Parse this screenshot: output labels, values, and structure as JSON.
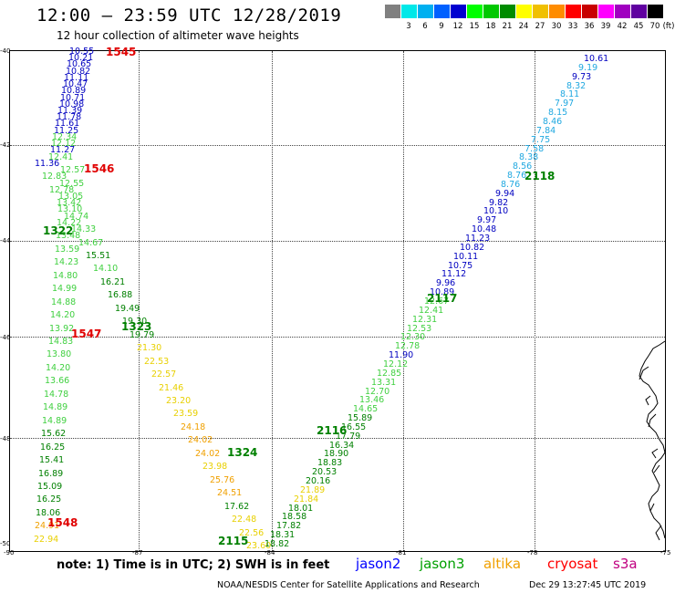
{
  "header": {
    "title": "12:00 – 23:59 UTC 12/28/2019",
    "subtitle": "12 hour collection of altimeter wave heights"
  },
  "legend": {
    "unit": "(ft)",
    "items": [
      {
        "label": "",
        "color": "#808080"
      },
      {
        "label": "3",
        "color": "#00e8e8"
      },
      {
        "label": "6",
        "color": "#00b0f0"
      },
      {
        "label": "9",
        "color": "#0060ff"
      },
      {
        "label": "12",
        "color": "#0000d0"
      },
      {
        "label": "15",
        "color": "#00ff00"
      },
      {
        "label": "18",
        "color": "#00c800"
      },
      {
        "label": "21",
        "color": "#008c00"
      },
      {
        "label": "24",
        "color": "#ffff00"
      },
      {
        "label": "27",
        "color": "#f0c000"
      },
      {
        "label": "30",
        "color": "#ff8c00"
      },
      {
        "label": "33",
        "color": "#ff0000"
      },
      {
        "label": "36",
        "color": "#c80000"
      },
      {
        "label": "39",
        "color": "#ff00ff"
      },
      {
        "label": "42",
        "color": "#a000c0"
      },
      {
        "label": "45",
        "color": "#6000a0"
      },
      {
        "label": "70",
        "color": "#000000"
      }
    ]
  },
  "axes": {
    "lat_labels": [
      "-40",
      "-42",
      "-44",
      "-46",
      "-48",
      "-50"
    ],
    "lon_labels": [
      "-90",
      "-87",
      "-84",
      "-81",
      "-78",
      "-75"
    ]
  },
  "tracks": {
    "track_a": {
      "values": [
        "10.55",
        "10.21",
        "10.65",
        "10.82",
        "11.11",
        "10.47",
        "10.89",
        "10.71",
        "10.98",
        "11.39",
        "11.78",
        "11.61",
        "11.25",
        "12.34",
        "12.12",
        "11.27",
        "12.41",
        "11.36",
        "12.57",
        "12.83",
        "12.55",
        "12.78",
        "13.05",
        "13.42",
        "13.10",
        "14.74",
        "14.22",
        "14.33",
        "13.48",
        "14.67",
        "13.59",
        "15.51",
        "14.23",
        "14.10",
        "14.80",
        "16.21",
        "14.99",
        "16.88",
        "14.88",
        "19.49",
        "14.20",
        "19.30",
        "13.92",
        "19.79",
        "14.83",
        "21.30",
        "13.80",
        "22.53",
        "14.20",
        "22.57",
        "13.66",
        "21.46",
        "14.78",
        "23.20",
        "14.89",
        "23.59",
        "14.89",
        "24.18",
        "15.62",
        "24.02",
        "16.25",
        "24.02",
        "15.41",
        "23.98",
        "16.89",
        "25.76",
        "15.09",
        "24.51",
        "16.25",
        "17.62",
        "18.06",
        "22.48",
        "24.91",
        "22.56",
        "22.94",
        "23.60"
      ],
      "colors": {
        "blue": "#0000c0",
        "green": "#008000",
        "light": "#40d040",
        "yellow": "#e8d000",
        "orange": "#f0a000"
      }
    },
    "track_b": {
      "values": [
        "10.61",
        "9.19",
        "9.73",
        "8.32",
        "8.11",
        "7.97",
        "8.15",
        "8.46",
        "7.84",
        "7.75",
        "7.58",
        "8.38",
        "8.56",
        "8.76",
        "8.76",
        "9.94",
        "9.82",
        "10.10",
        "9.97",
        "10.48",
        "11.23",
        "10.82",
        "10.11",
        "10.75",
        "11.12",
        "9.96",
        "10.89",
        "12.67",
        "12.41",
        "12.31",
        "12.53",
        "12.30",
        "12.78",
        "11.90",
        "12.12",
        "12.85",
        "13.31",
        "12.70",
        "13.46",
        "14.65",
        "15.89",
        "16.55",
        "17.79",
        "16.34",
        "18.90",
        "18.83",
        "20.53",
        "20.16",
        "21.89",
        "21.84",
        "18.01",
        "18.58",
        "17.82",
        "18.31",
        "18.82"
      ]
    },
    "times": {
      "t1545": "1545",
      "t1546": "1546",
      "t1322": "1322",
      "t1547": "1547",
      "t1323": "1323",
      "t1324": "1324",
      "t1548": "1548",
      "t2115": "2115",
      "t2116": "2116",
      "t2117": "2117",
      "t2118": "2118"
    }
  },
  "note": "note: 1) Time is in UTC; 2) SWH is in feet",
  "satellites": [
    {
      "name": "jason2",
      "color": "#0000ff"
    },
    {
      "name": "jason3",
      "color": "#00a000"
    },
    {
      "name": "altika",
      "color": "#f0a000"
    },
    {
      "name": "cryosat",
      "color": "#ff0000"
    },
    {
      "name": "s3a",
      "color": "#c00080"
    }
  ],
  "footer": {
    "left": "NOAA/NESDIS Center for Satellite Applications and Research",
    "right": "Dec 29 13:27:45 UTC 2019"
  }
}
